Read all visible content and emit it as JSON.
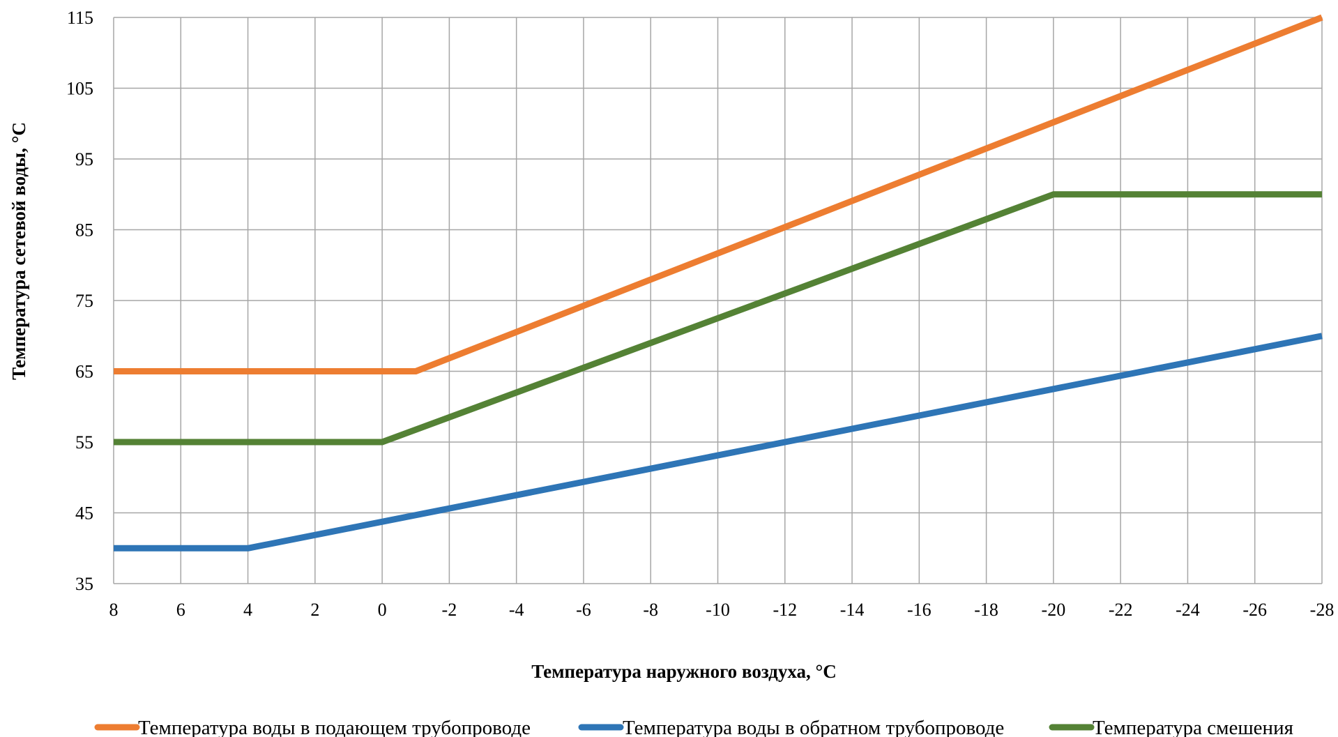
{
  "chart_data": {
    "type": "line",
    "title": "",
    "xlabel": "Температура наружного воздуха, °С",
    "ylabel": "Температура сетевой воды, °С",
    "xlim": [
      8,
      -28
    ],
    "ylim": [
      35,
      115
    ],
    "grid": true,
    "legend_position": "bottom",
    "x_ticks": [
      "8",
      "6",
      "4",
      "2",
      "0",
      "-2",
      "-4",
      "-6",
      "-8",
      "-10",
      "-12",
      "-14",
      "-16",
      "-18",
      "-20",
      "-22",
      "-24",
      "-26",
      "-28"
    ],
    "y_ticks": [
      "35",
      "45",
      "55",
      "65",
      "75",
      "85",
      "95",
      "105",
      "115"
    ],
    "series": [
      {
        "name": "Температура воды в подающем трубопроводе",
        "color": "#ED7D31",
        "points": [
          [
            8,
            65
          ],
          [
            -1,
            65
          ],
          [
            -28,
            115
          ]
        ]
      },
      {
        "name": "Температура воды в обратном трубопроводе",
        "color": "#2E75B6",
        "points": [
          [
            8,
            40
          ],
          [
            4,
            40
          ],
          [
            -28,
            70
          ]
        ]
      },
      {
        "name": "Температура смешения",
        "color": "#548235",
        "points": [
          [
            8,
            55
          ],
          [
            0,
            55
          ],
          [
            -20,
            90
          ],
          [
            -28,
            90
          ]
        ]
      }
    ]
  }
}
